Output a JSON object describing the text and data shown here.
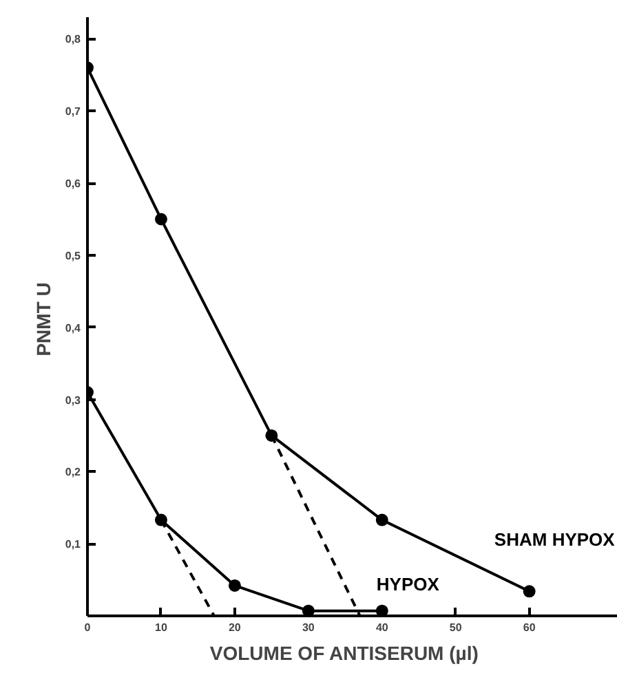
{
  "chart_data": {
    "type": "line",
    "xlabel": "VOLUME OF ANTISERUM    (µl)",
    "ylabel": "PNMT  U",
    "xlim": [
      0,
      72
    ],
    "ylim": [
      0,
      0.83
    ],
    "xticks": [
      0,
      10,
      20,
      30,
      40,
      50,
      60
    ],
    "yticks": [
      {
        "value": 0.1,
        "label": "0,1"
      },
      {
        "value": 0.2,
        "label": "0,2"
      },
      {
        "value": 0.3,
        "label": "0,3"
      },
      {
        "value": 0.4,
        "label": "0,4"
      },
      {
        "value": 0.5,
        "label": "0,5"
      },
      {
        "value": 0.6,
        "label": "0,6"
      },
      {
        "value": 0.7,
        "label": "0,7"
      },
      {
        "value": 0.8,
        "label": "0,8"
      }
    ],
    "grid": false,
    "marker": "circle",
    "line_style": "solid",
    "series": [
      {
        "name": "SHAM HYPOX",
        "color": "#000000",
        "x": [
          0,
          10,
          25,
          40,
          60
        ],
        "values": [
          0.76,
          0.55,
          0.25,
          0.133,
          0.034
        ]
      },
      {
        "name": "HYPOX",
        "color": "#000000",
        "x": [
          0,
          10,
          20,
          30,
          40
        ],
        "values": [
          0.31,
          0.133,
          0.042,
          0.007,
          0.007
        ]
      },
      {
        "color": "#000000",
        "x": [
          25,
          37
        ],
        "values": [
          0.25,
          0
        ],
        "line_style": "dashed",
        "marker": "none"
      },
      {
        "color": "#000000",
        "x": [
          10,
          17.2
        ],
        "values": [
          0.133,
          0
        ],
        "line_style": "dashed",
        "marker": "none"
      }
    ]
  }
}
